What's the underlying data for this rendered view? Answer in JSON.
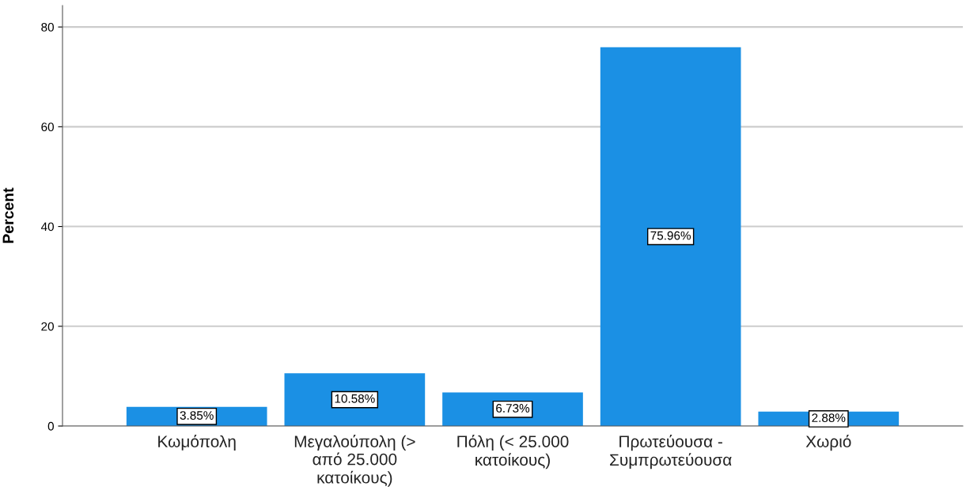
{
  "chart_data": {
    "type": "bar",
    "ylabel": "Percent",
    "categories": [
      "Κωμόπολη",
      "Μεγαλούπολη (>\nαπό 25.000\nκατοίκους)",
      "Πόλη (< 25.000\nκατοίκους)",
      "Πρωτεύουσα -\nΣυμπρωτεύουσα",
      "Χωριό"
    ],
    "values": [
      3.85,
      10.58,
      6.73,
      75.96,
      2.88
    ],
    "value_labels": [
      "3.85%",
      "10.58%",
      "6.73%",
      "75.96%",
      "2.88%"
    ],
    "color": "#1b90e4",
    "ylim": [
      0,
      84.3
    ],
    "yticks": [
      0,
      20,
      40,
      60,
      80
    ],
    "grid": "y"
  }
}
